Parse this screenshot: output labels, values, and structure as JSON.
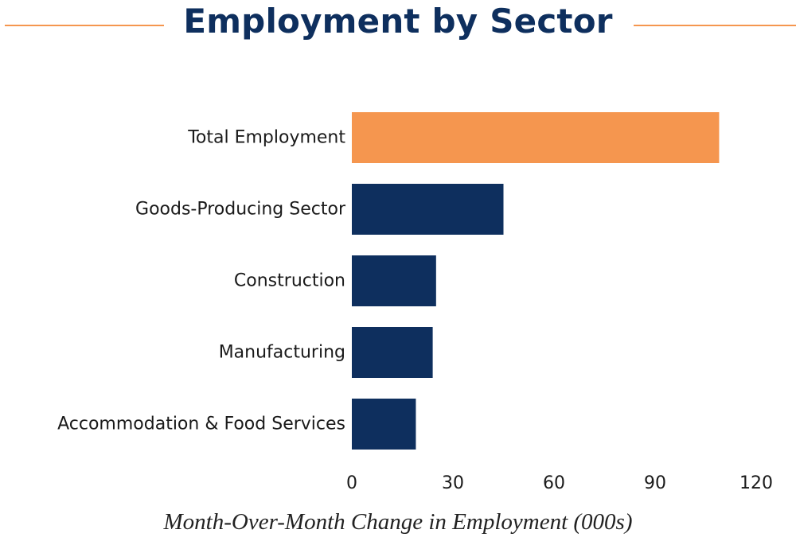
{
  "chart_data": {
    "type": "bar",
    "orientation": "horizontal",
    "title": "Employment by Sector",
    "xlabel": "Month-Over-Month Change in Employment (000s)",
    "ylabel": "",
    "categories": [
      "Total Employment",
      "Goods-Producing Sector",
      "Construction",
      "Manufacturing",
      "Accommodation & Food Services"
    ],
    "values": [
      109,
      45,
      25,
      24,
      19
    ],
    "xlim": [
      0,
      120
    ],
    "xticks": [
      "0",
      "30",
      "60",
      "90",
      "120"
    ],
    "grid": false,
    "legend": "none",
    "colors": {
      "highlight": "#F5964F",
      "bar": "#0E2F5E",
      "title": "#0E2F5E",
      "title_rule": "#F5964F"
    }
  }
}
